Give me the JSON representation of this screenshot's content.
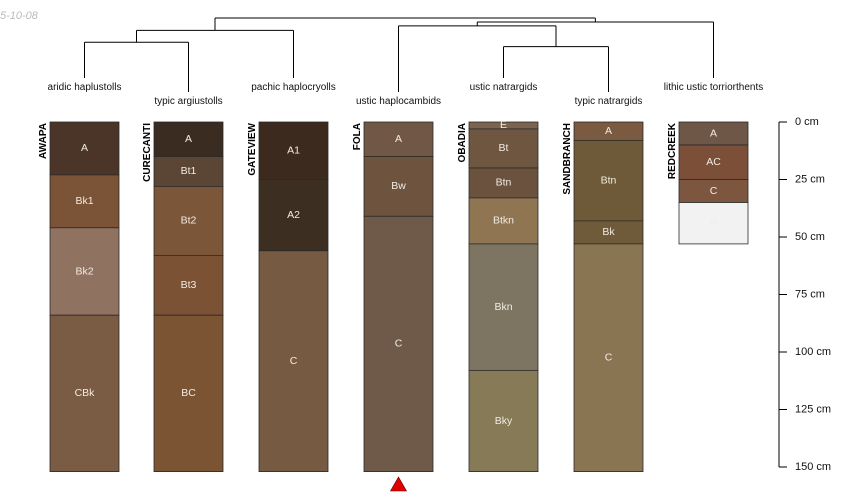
{
  "date_stamp": "5-10-08",
  "depth_unit": "cm",
  "depth_axis": {
    "ticks": [
      0,
      25,
      50,
      75,
      100,
      125,
      150
    ],
    "labels": [
      "0 cm",
      "25 cm",
      "50 cm",
      "75 cm",
      "100 cm",
      "125 cm",
      "150 cm"
    ]
  },
  "profiles": [
    {
      "name": "AWAPA",
      "taxonomy": "aridic haplustolls",
      "horizons": [
        {
          "name": "A",
          "top": 0,
          "bottom": 23,
          "color": "#4a3528"
        },
        {
          "name": "Bk1",
          "top": 23,
          "bottom": 46,
          "color": "#7b5337"
        },
        {
          "name": "Bk2",
          "top": 46,
          "bottom": 84,
          "color": "#8f7260"
        },
        {
          "name": "CBk",
          "top": 84,
          "bottom": 152,
          "color": "#7a5b44"
        }
      ]
    },
    {
      "name": "CURECANTI",
      "taxonomy": "typic argiustolls",
      "horizons": [
        {
          "name": "A",
          "top": 0,
          "bottom": 15,
          "color": "#3b2c22"
        },
        {
          "name": "Bt1",
          "top": 15,
          "bottom": 28,
          "color": "#5b4535"
        },
        {
          "name": "Bt2",
          "top": 28,
          "bottom": 58,
          "color": "#7c5638"
        },
        {
          "name": "Bt3",
          "top": 58,
          "bottom": 84,
          "color": "#7b5233"
        },
        {
          "name": "BC",
          "top": 84,
          "bottom": 152,
          "color": "#7b5433"
        }
      ]
    },
    {
      "name": "GATEVIEW",
      "taxonomy": "pachic haplocryolls",
      "horizons": [
        {
          "name": "A1",
          "top": 0,
          "bottom": 25,
          "color": "#3c2a1f"
        },
        {
          "name": "A2",
          "top": 25,
          "bottom": 56,
          "color": "#3d2e22"
        },
        {
          "name": "C",
          "top": 56,
          "bottom": 152,
          "color": "#765a41"
        }
      ]
    },
    {
      "name": "FOLA",
      "taxonomy": "ustic haplocambids",
      "horizons": [
        {
          "name": "A",
          "top": 0,
          "bottom": 15,
          "color": "#705746"
        },
        {
          "name": "Bw",
          "top": 15,
          "bottom": 41,
          "color": "#6e533f"
        },
        {
          "name": "C",
          "top": 41,
          "bottom": 152,
          "color": "#6f5a4a"
        }
      ]
    },
    {
      "name": "OBADIA",
      "taxonomy": "ustic natrargids",
      "horizons": [
        {
          "name": "E",
          "top": 0,
          "bottom": 3,
          "color": "#7a6450"
        },
        {
          "name": "Bt",
          "top": 3,
          "bottom": 20,
          "color": "#6f5640"
        },
        {
          "name": "Btn",
          "top": 20,
          "bottom": 33,
          "color": "#6b523e"
        },
        {
          "name": "Btkn",
          "top": 33,
          "bottom": 53,
          "color": "#8f7551"
        },
        {
          "name": "Bkn",
          "top": 53,
          "bottom": 108,
          "color": "#7d7562"
        },
        {
          "name": "Bky",
          "top": 108,
          "bottom": 152,
          "color": "#877a56"
        }
      ]
    },
    {
      "name": "SANDBRANCH",
      "taxonomy": "typic natrargids",
      "horizons": [
        {
          "name": "A",
          "top": 0,
          "bottom": 8,
          "color": "#7a5a40"
        },
        {
          "name": "Btn",
          "top": 8,
          "bottom": 43,
          "color": "#6e5a38"
        },
        {
          "name": "Bk",
          "top": 43,
          "bottom": 53,
          "color": "#6f5a3a"
        },
        {
          "name": "C",
          "top": 53,
          "bottom": 152,
          "color": "#8a7552"
        }
      ]
    },
    {
      "name": "REDCREEK",
      "taxonomy": "lithic ustic torriorthents",
      "horizons": [
        {
          "name": "A",
          "top": 0,
          "bottom": 10,
          "color": "#6f5747"
        },
        {
          "name": "AC",
          "top": 10,
          "bottom": 25,
          "color": "#7c4f39"
        },
        {
          "name": "C",
          "top": 25,
          "bottom": 35,
          "color": "#7d5640"
        },
        {
          "name": "R",
          "top": 35,
          "bottom": 53,
          "color": "#f2f2f2"
        }
      ]
    }
  ],
  "dendrogram": {
    "merges": [
      {
        "left": "AWAPA",
        "right": "CURECANTI",
        "height": 0.45
      },
      {
        "left": "cluster1",
        "right": "GATEVIEW",
        "height": 0.72
      },
      {
        "left": "OBADIA",
        "right": "SANDBRANCH",
        "height": 0.35
      },
      {
        "left": "FOLA",
        "right": "cluster3",
        "height": 0.82
      },
      {
        "left": "cluster4",
        "right": "REDCREEK",
        "height": 0.91
      },
      {
        "left": "cluster2",
        "right": "cluster5",
        "height": 1.0
      }
    ]
  },
  "marker": {
    "profile": "FOLA",
    "color": "#e00000"
  }
}
